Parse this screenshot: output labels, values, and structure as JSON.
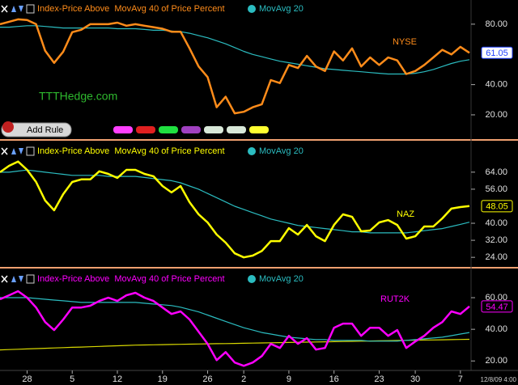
{
  "watermark": "TTTHedge.com",
  "button": "Add Rule",
  "chart_data": [
    {
      "type": "line",
      "annotation": "NYSE",
      "x": [
        0,
        1,
        2,
        3,
        4,
        5,
        6,
        7,
        8,
        9,
        10,
        11,
        12,
        13,
        14,
        15,
        16,
        17,
        18,
        19,
        20,
        21,
        22,
        23,
        24,
        25,
        26,
        27,
        28,
        29,
        30,
        31,
        32,
        33,
        34,
        35,
        36,
        37,
        38,
        39,
        40,
        41,
        42,
        43,
        44,
        45,
        46,
        47,
        48,
        49,
        50,
        51,
        52
      ],
      "xlim": [
        0,
        52
      ],
      "ylim": [
        5,
        96
      ],
      "yticks": [
        {
          "value": 80,
          "label": "80.00"
        },
        {
          "value": 40,
          "label": "40.00"
        },
        {
          "value": 20,
          "label": "20.00"
        }
      ],
      "series": [
        {
          "name": "Index-Price Above  MovAvg 40 of Price Percent",
          "color": "#ff8c1a",
          "values": [
            80,
            81.6,
            83.2,
            82.7,
            80,
            62.4,
            54.4,
            61.8,
            74.7,
            76.3,
            80,
            80,
            80,
            81,
            79,
            80,
            79,
            78,
            77,
            75,
            75,
            64,
            52,
            45,
            25,
            32,
            21,
            22,
            25,
            27,
            43,
            41,
            53,
            51,
            59,
            52,
            49,
            62,
            56,
            64,
            52,
            58,
            53,
            58,
            56,
            47,
            49,
            53,
            58,
            63,
            60,
            65,
            61.05
          ]
        },
        {
          "name": "MovAvg 20",
          "color": "#2bbcc0",
          "values": [
            78,
            78,
            78.5,
            79,
            79,
            78.5,
            78,
            77.5,
            77.5,
            77.5,
            77.5,
            77.5,
            77.5,
            77,
            77,
            77,
            76.5,
            76,
            76,
            75.5,
            75,
            74,
            72.5,
            71,
            69,
            67,
            64.5,
            62,
            60,
            58.5,
            57,
            55.5,
            54.5,
            53.5,
            52.5,
            51.5,
            50.5,
            50,
            49.5,
            49,
            48.5,
            48,
            47.5,
            47,
            47,
            47,
            47.5,
            48.5,
            50,
            52,
            54,
            55.5,
            56.5
          ]
        }
      ]
    },
    {
      "type": "line",
      "annotation": "NAZ",
      "x": [
        0,
        1,
        2,
        3,
        4,
        5,
        6,
        7,
        8,
        9,
        10,
        11,
        12,
        13,
        14,
        15,
        16,
        17,
        18,
        19,
        20,
        21,
        22,
        23,
        24,
        25,
        26,
        27,
        28,
        29,
        30,
        31,
        32,
        33,
        34,
        35,
        36,
        37,
        38,
        39,
        40,
        41,
        42,
        43,
        44,
        45,
        46,
        47,
        48,
        49,
        50,
        51,
        52
      ],
      "xlim": [
        0,
        52
      ],
      "ylim": [
        19.5,
        78
      ],
      "yticks": [
        {
          "value": 64,
          "label": "64.00"
        },
        {
          "value": 56,
          "label": "56.00"
        },
        {
          "value": 40,
          "label": "40.00"
        },
        {
          "value": 32,
          "label": "32.00"
        },
        {
          "value": 24,
          "label": "24.00"
        }
      ],
      "series": [
        {
          "name": "Index-Price Above  MovAvg 40 of Price Percent",
          "color": "#ffff00",
          "values": [
            64,
            67,
            69,
            65.1,
            59.4,
            50.7,
            46.1,
            53.7,
            59.4,
            60.6,
            60.6,
            64.4,
            63.2,
            61.3,
            65.1,
            65.1,
            63.2,
            62.1,
            57.5,
            54.5,
            57.5,
            49.9,
            44.2,
            40.4,
            34.7,
            30.9,
            25.9,
            24,
            24.8,
            27,
            31.6,
            31.6,
            37.7,
            34.7,
            39.2,
            33.9,
            31.6,
            39.2,
            44.2,
            43,
            36.2,
            36.6,
            40.4,
            41.5,
            39.2,
            32.8,
            33.9,
            38.5,
            38.5,
            42.3,
            46.9,
            47.6,
            48.05
          ]
        },
        {
          "name": "MovAvg 20",
          "color": "#2bbcc0",
          "values": [
            64,
            64,
            64.5,
            65,
            64.5,
            64,
            63.5,
            63,
            62.5,
            62.5,
            62.5,
            62.5,
            62,
            62,
            62,
            62,
            61.5,
            61,
            60.5,
            60,
            59,
            57.5,
            56,
            54,
            52,
            50,
            48,
            46.5,
            45,
            43.5,
            42,
            41,
            40,
            39,
            38.5,
            38,
            37.5,
            37,
            36.5,
            36,
            36,
            35.5,
            35.5,
            35.5,
            35.5,
            35.5,
            36,
            36.5,
            37,
            37.5,
            38.5,
            39.5,
            40.5
          ]
        }
      ]
    },
    {
      "type": "line",
      "annotation": "RUT2K",
      "x": [
        0,
        1,
        2,
        3,
        4,
        5,
        6,
        7,
        8,
        9,
        10,
        11,
        12,
        13,
        14,
        15,
        16,
        17,
        18,
        19,
        20,
        21,
        22,
        23,
        24,
        25,
        26,
        27,
        28,
        29,
        30,
        31,
        32,
        33,
        34,
        35,
        36,
        37,
        38,
        39,
        40,
        41,
        42,
        43,
        44,
        45,
        46,
        47,
        48,
        49,
        50,
        51,
        52
      ],
      "xlim": [
        0,
        52
      ],
      "ylim": [
        14,
        77.4
      ],
      "yticks": [
        {
          "value": 60,
          "label": "60.00"
        },
        {
          "value": 40,
          "label": "40.00"
        },
        {
          "value": 20,
          "label": "20.00"
        }
      ],
      "xticks": [
        {
          "value": 3,
          "label": "28"
        },
        {
          "value": 8,
          "label": "5"
        },
        {
          "value": 13,
          "label": "12"
        },
        {
          "value": 18,
          "label": "19"
        },
        {
          "value": 23,
          "label": "26"
        },
        {
          "value": 27,
          "label": "2"
        },
        {
          "value": 32,
          "label": "9"
        },
        {
          "value": 37,
          "label": "16"
        },
        {
          "value": 42,
          "label": "23"
        },
        {
          "value": 46,
          "label": "30"
        },
        {
          "value": 51,
          "label": "7"
        }
      ],
      "date_label": "12/8/09 4:00",
      "series": [
        {
          "name": "Index-Price Above  MovAvg 40 of Price Percent",
          "color": "#ff00ff",
          "values": [
            59,
            61.5,
            64.1,
            60,
            53.8,
            44.6,
            39.5,
            46.2,
            53.8,
            53.8,
            54.9,
            57.9,
            60,
            57.9,
            61.5,
            63.1,
            60,
            57.9,
            53.8,
            49.7,
            51.3,
            46.2,
            38.5,
            30.8,
            20.5,
            25.6,
            19,
            16.9,
            19,
            23.1,
            30.8,
            28.2,
            35.9,
            30.8,
            34.4,
            27.2,
            28.2,
            41,
            43.6,
            43.6,
            35.9,
            41,
            41,
            35.9,
            39.5,
            28.2,
            32.3,
            35.9,
            41,
            44.6,
            51.3,
            49.7,
            54.47
          ]
        },
        {
          "name": "MovAvg 20",
          "color": "#2bbcc0",
          "values": [
            60,
            60,
            60,
            60,
            59.5,
            59,
            58.5,
            58,
            57.5,
            57,
            57,
            57,
            57,
            57,
            57,
            57,
            56.5,
            56,
            55.5,
            55,
            54,
            52.5,
            51,
            49,
            47,
            45,
            43,
            41,
            39.5,
            38,
            37,
            36,
            35,
            34.5,
            34,
            33.5,
            33.5,
            33,
            33,
            33,
            33,
            32.5,
            32.5,
            32.5,
            32.5,
            33,
            33.5,
            34,
            34.5,
            35,
            36,
            37,
            38
          ]
        },
        {
          "color": "#d8d800",
          "values": [
            27,
            27.2,
            27.4,
            27.6,
            27.8,
            28,
            28.2,
            28.4,
            28.6,
            28.8,
            29,
            29.2,
            29.4,
            29.6,
            29.8,
            30,
            30.1,
            30.2,
            30.3,
            30.4,
            30.5,
            30.6,
            30.7,
            30.8,
            30.9,
            31,
            31.1,
            31.2,
            31.3,
            31.4,
            31.5,
            31.6,
            31.7,
            31.8,
            31.9,
            32,
            32.1,
            32.2,
            32.3,
            32.4,
            32.5,
            32.6,
            32.7,
            32.8,
            32.9,
            33,
            33.1,
            33.2,
            33.3,
            33.4,
            33.5,
            33.6,
            33.7
          ]
        }
      ]
    }
  ]
}
